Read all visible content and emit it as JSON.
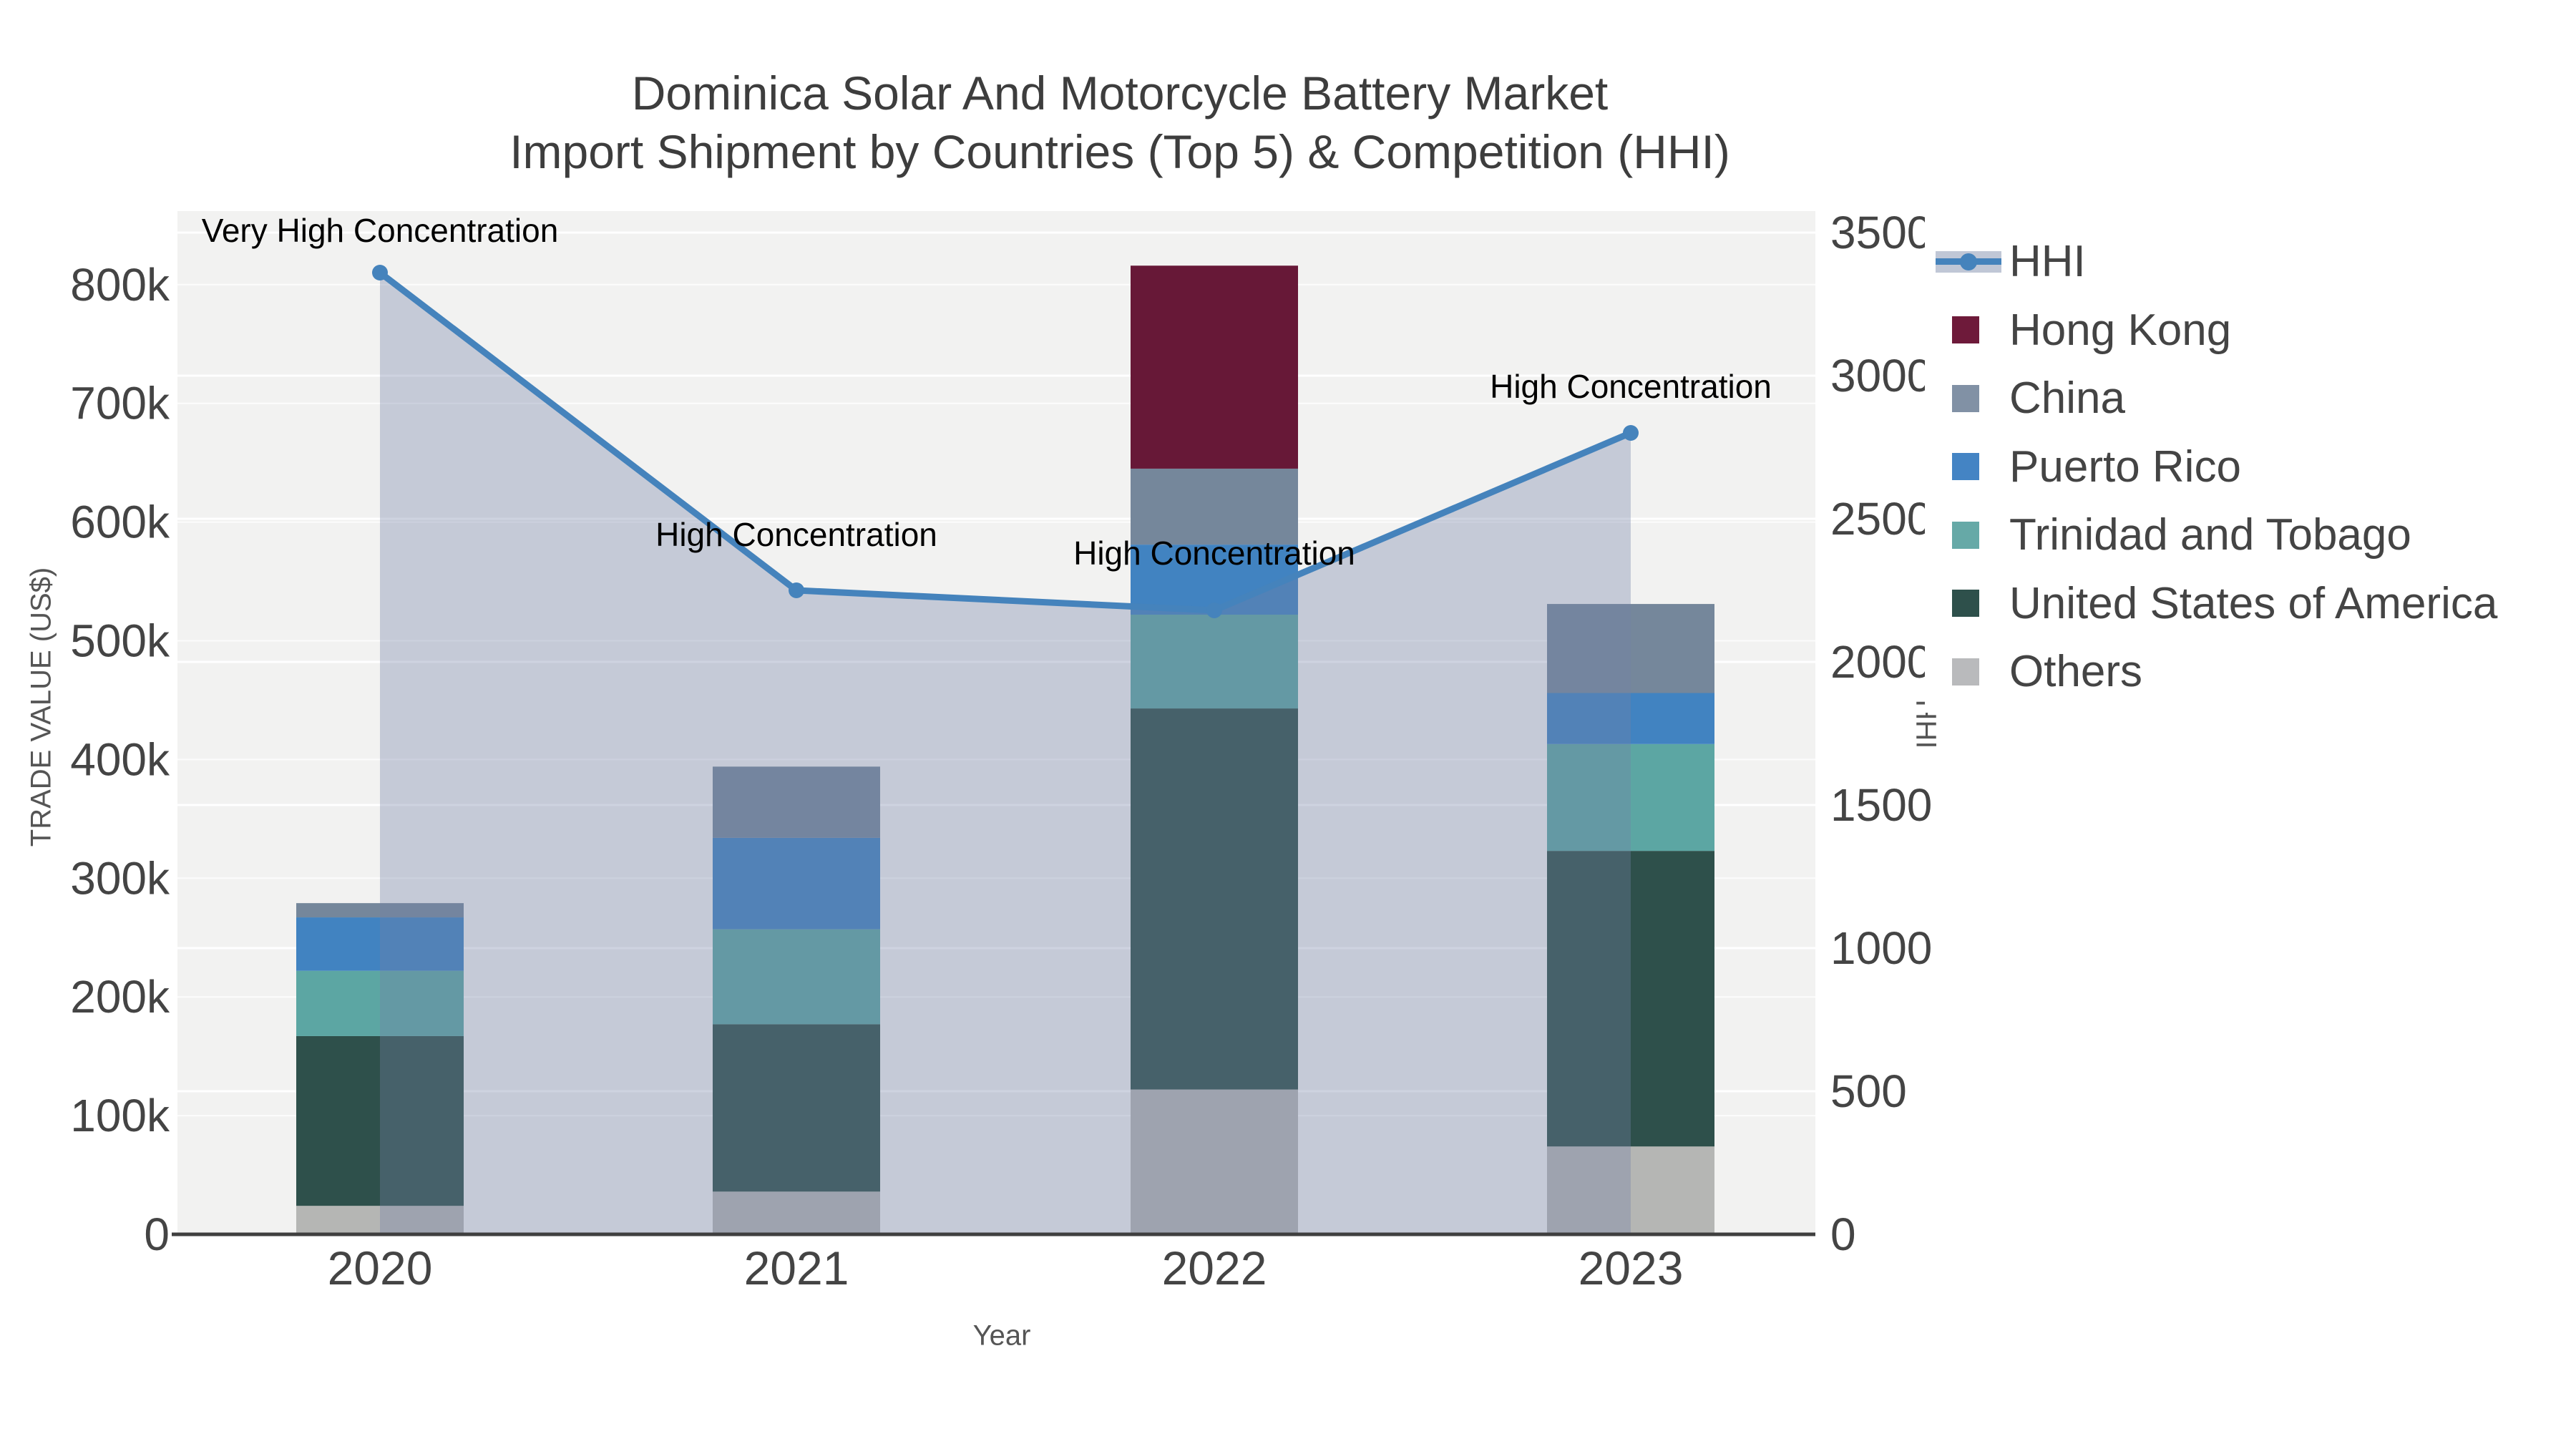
{
  "title": {
    "line1": "Dominica Solar And Motorcycle Battery Market",
    "line2": "Import Shipment by Countries (Top 5) & Competition (HHI)"
  },
  "axes": {
    "x": {
      "title": "Year",
      "ticks": [
        "2020",
        "2021",
        "2022",
        "2023"
      ]
    },
    "y_left": {
      "title": "TRADE VALUE (US$)",
      "ticks": [
        {
          "value": 0,
          "label": "0"
        },
        {
          "value": 100000,
          "label": "100k"
        },
        {
          "value": 200000,
          "label": "200k"
        },
        {
          "value": 300000,
          "label": "300k"
        },
        {
          "value": 400000,
          "label": "400k"
        },
        {
          "value": 500000,
          "label": "500k"
        },
        {
          "value": 600000,
          "label": "600k"
        },
        {
          "value": 700000,
          "label": "700k"
        },
        {
          "value": 800000,
          "label": "800k"
        }
      ]
    },
    "y_right": {
      "title": "HHI",
      "ticks": [
        {
          "value": 0,
          "label": "0"
        },
        {
          "value": 500,
          "label": "500"
        },
        {
          "value": 1000,
          "label": "1000"
        },
        {
          "value": 1500,
          "label": "1500"
        },
        {
          "value": 2000,
          "label": "2000"
        },
        {
          "value": 2500,
          "label": "2500"
        },
        {
          "value": 3000,
          "label": "3000"
        },
        {
          "value": 3500,
          "label": "3500"
        }
      ]
    }
  },
  "legend": [
    {
      "label": "HHI",
      "type": "line",
      "color": "#4583bc",
      "band": "rgba(115,130,165,0.45)"
    },
    {
      "label": "Hong Kong",
      "type": "swatch",
      "color": "#6e1a3a"
    },
    {
      "label": "China",
      "type": "swatch",
      "color": "#8191a5"
    },
    {
      "label": "Puerto Rico",
      "type": "swatch",
      "color": "#4484c4"
    },
    {
      "label": "Trinidad and Tobago",
      "type": "swatch",
      "color": "#66a9a7"
    },
    {
      "label": "United States of America",
      "type": "swatch",
      "color": "#2e504b"
    },
    {
      "label": "Others",
      "type": "swatch",
      "color": "#b9babc"
    }
  ],
  "chart_data": {
    "type": "bar",
    "stacked": true,
    "grid": true,
    "legend_position": "right",
    "categories": [
      "2020",
      "2021",
      "2022",
      "2023"
    ],
    "series": [
      {
        "name": "Others",
        "values": [
          24000,
          36000,
          122000,
          74000
        ],
        "color": "#b5b6b4"
      },
      {
        "name": "United States of America",
        "values": [
          143000,
          141000,
          321000,
          249000
        ],
        "color": "#2e504b"
      },
      {
        "name": "Trinidad and Tobago",
        "values": [
          55000,
          80000,
          79000,
          90000
        ],
        "color": "#5ca6a3"
      },
      {
        "name": "Puerto Rico",
        "values": [
          45000,
          77000,
          59000,
          43000
        ],
        "color": "#4183c1"
      },
      {
        "name": "China",
        "values": [
          12000,
          60000,
          64000,
          75000
        ],
        "color": "#75879b"
      },
      {
        "name": "Hong Kong",
        "values": [
          0,
          0,
          171000,
          0
        ],
        "color": "#671837"
      }
    ],
    "line_series": {
      "name": "HHI",
      "axis": "right",
      "values": [
        3360,
        2250,
        2180,
        2800
      ],
      "color": "#4583bc",
      "area_fill": "rgba(115,130,165,0.35)"
    },
    "annotations": [
      {
        "x": "2020",
        "text": "Very High Concentration",
        "dy": -43
      },
      {
        "x": "2021",
        "text": "High Concentration",
        "dy": -62
      },
      {
        "x": "2022",
        "text": "High Concentration",
        "dy": -64
      },
      {
        "x": "2023",
        "text": "High Concentration",
        "dy": -49
      }
    ],
    "xlabel": "Year",
    "ylabel": "TRADE VALUE (US$)",
    "ylabel_right": "HHI",
    "ylim_left": [
      0,
      862000
    ],
    "ylim_right": [
      0,
      3575
    ]
  }
}
